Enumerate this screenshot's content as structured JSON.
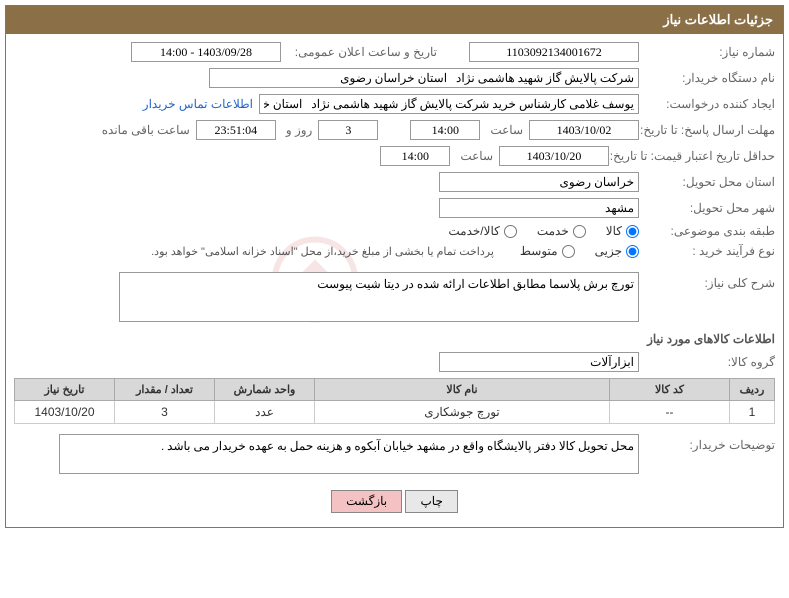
{
  "panel": {
    "title": "جزئیات اطلاعات نیاز"
  },
  "fields": {
    "need_no_label": "شماره نیاز:",
    "need_no": "1103092134001672",
    "announce_label": "تاریخ و ساعت اعلان عمومی:",
    "announce": "1403/09/28 - 14:00",
    "buyer_org_label": "نام دستگاه خریدار:",
    "buyer_org": "شرکت پالایش گاز شهید هاشمی نژاد   استان خراسان رضوی",
    "requester_label": "ایجاد کننده درخواست:",
    "requester": "یوسف غلامی کارشناس خرید شرکت پالایش گاز شهید هاشمی نژاد   استان خر",
    "contact_link": "اطلاعات تماس خریدار",
    "deadline_reply_label": "مهلت ارسال پاسخ: تا تاریخ:",
    "deadline_reply_date": "1403/10/02",
    "deadline_reply_time": "14:00",
    "hour_label": "ساعت",
    "days_label": "روز و",
    "days_remaining": "3",
    "hours_remaining": "23:51:04",
    "remaining_label": "ساعت باقی مانده",
    "min_valid_label": "حداقل تاریخ اعتبار قیمت: تا تاریخ:",
    "min_valid_date": "1403/10/20",
    "min_valid_time": "14:00",
    "province_label": "استان محل تحویل:",
    "province": "خراسان رضوی",
    "city_label": "شهر محل تحویل:",
    "city": "مشهد",
    "category_label": "طبقه بندی موضوعی:",
    "cat_goods": "کالا",
    "cat_service": "خدمت",
    "cat_both": "کالا/خدمت",
    "process_label": "نوع فرآیند خرید :",
    "proc_partial": "جزیی",
    "proc_medium": "متوسط",
    "process_note": "پرداخت تمام یا بخشی از مبلغ خرید،از محل \"اسناد خزانه اسلامی\" خواهد بود.",
    "desc_label": "شرح کلی نیاز:",
    "desc": "تورچ برش پلاسما مطابق اطلاعات ارائه شده در دیتا شیت پیوست",
    "goods_section": "اطلاعات کالاهای مورد نیاز",
    "goods_group_label": "گروه کالا:",
    "goods_group": "ابزارآلات",
    "buyer_notes_label": "توضیحات خریدار:",
    "buyer_notes": "محل تحویل کالا دفتر پالایشگاه واقع در مشهد خیابان آبکوه و هزینه حمل به عهده خریدار می باشد ."
  },
  "table": {
    "headers": {
      "row": "ردیف",
      "code": "کد کالا",
      "name": "نام کالا",
      "unit": "واحد شمارش",
      "qty": "تعداد / مقدار",
      "date": "تاریخ نیاز"
    },
    "rows": [
      {
        "row": "1",
        "code": "--",
        "name": "تورچ جوشکاری",
        "unit": "عدد",
        "qty": "3",
        "date": "1403/10/20"
      }
    ]
  },
  "buttons": {
    "print": "چاپ",
    "back": "بازگشت"
  },
  "watermark": {
    "text": "AriaTender.net"
  }
}
